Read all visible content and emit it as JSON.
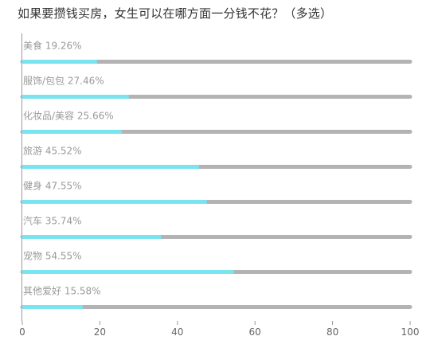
{
  "chart_data": {
    "type": "bar",
    "orientation": "horizontal",
    "title": "如果要攒钱买房，女生可以在哪方面一分钱不花？（多选）",
    "categories": [
      "美食",
      "服饰/包包",
      "化妆品/美容",
      "旅游",
      "健身",
      "汽车",
      "宠物",
      "其他爱好"
    ],
    "value_labels": [
      "19.26%",
      "27.46%",
      "25.66%",
      "45.52%",
      "47.55%",
      "35.74%",
      "54.55%",
      "15.58%"
    ],
    "values": [
      19.26,
      27.46,
      25.66,
      45.52,
      47.55,
      35.74,
      54.55,
      15.58
    ],
    "xlim": [
      0,
      100
    ],
    "xticks": [
      0,
      20,
      40,
      60,
      80,
      100
    ],
    "colors": {
      "fill": "#7ae3f0",
      "track": "#b3b3b3"
    }
  }
}
